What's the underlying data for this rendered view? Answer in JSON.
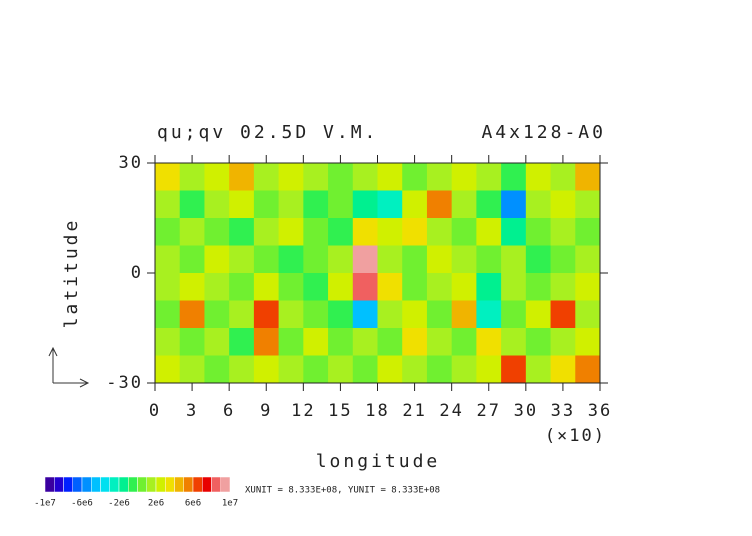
{
  "chart_data": {
    "type": "heatmap",
    "title": "qu;qv 02.5D V.M.",
    "subtitle": "A4x128-A0",
    "x_label": "longitude",
    "y_label": "latitude",
    "x_scale_note": "(×10)",
    "footer": "XUNIT = 8.333E+08, YUNIT = 8.333E+08",
    "xlim": [
      0,
      36
    ],
    "ylim": [
      -30,
      30
    ],
    "xticks": [
      0,
      3,
      6,
      9,
      12,
      15,
      18,
      21,
      24,
      27,
      30,
      33,
      36
    ],
    "yticks": [
      -30,
      0,
      30
    ],
    "xbins": [
      0,
      2,
      4,
      6,
      8,
      10,
      12,
      14,
      16,
      18,
      20,
      22,
      24,
      26,
      28,
      30,
      32,
      34,
      36
    ],
    "ybins": [
      30,
      22.5,
      15,
      7.5,
      0,
      -7.5,
      -15,
      -22.5,
      -30
    ],
    "z": [
      [
        3000000,
        1000000,
        2000000,
        4000000,
        1000000,
        2000000,
        1000000,
        0,
        1000000,
        2000000,
        0,
        1000000,
        2000000,
        1000000,
        -1000000,
        2000000,
        1000000,
        4000000
      ],
      [
        1000000,
        -1000000,
        1000000,
        2000000,
        0,
        1000000,
        -1000000,
        0,
        -2000000,
        -3000000,
        2000000,
        5000000,
        1000000,
        -1000000,
        -6000000,
        1000000,
        2000000,
        1000000
      ],
      [
        0,
        1000000,
        0,
        -1000000,
        1000000,
        2000000,
        0,
        -1000000,
        3000000,
        2000000,
        3000000,
        1000000,
        0,
        2000000,
        -2000000,
        0,
        1000000,
        0
      ],
      [
        1000000,
        0,
        2000000,
        1000000,
        0,
        -1000000,
        0,
        1000000,
        10000000,
        1000000,
        0,
        2000000,
        1000000,
        0,
        1000000,
        -1000000,
        0,
        1000000
      ],
      [
        1000000,
        2000000,
        1000000,
        0,
        2000000,
        0,
        -1000000,
        2000000,
        8000000,
        3000000,
        0,
        1000000,
        2000000,
        -2000000,
        1000000,
        0,
        1000000,
        2000000
      ],
      [
        0,
        5000000,
        0,
        1000000,
        6000000,
        1000000,
        0,
        -1000000,
        -5000000,
        1000000,
        2000000,
        0,
        4000000,
        -3000000,
        0,
        2000000,
        6000000,
        1000000
      ],
      [
        1000000,
        0,
        1000000,
        -1000000,
        5000000,
        0,
        2000000,
        0,
        1000000,
        0,
        3000000,
        1000000,
        0,
        3000000,
        1000000,
        0,
        1000000,
        2000000
      ],
      [
        2000000,
        1000000,
        0,
        1000000,
        2000000,
        1000000,
        0,
        1000000,
        0,
        2000000,
        1000000,
        0,
        1000000,
        2000000,
        6000000,
        1000000,
        3000000,
        5000000
      ]
    ],
    "colorbar": {
      "levels": [
        -10000000,
        -9000000,
        -8000000,
        -7000000,
        -6000000,
        -5000000,
        -4000000,
        -3000000,
        -2000000,
        -1000000,
        0,
        1000000,
        2000000,
        3000000,
        4000000,
        5000000,
        6000000,
        7000000,
        8000000,
        9000000,
        10000000
      ],
      "colors": [
        "#3a00a0",
        "#2200d0",
        "#0020ff",
        "#0060ff",
        "#0090ff",
        "#00c0ff",
        "#00e0f0",
        "#00f0c0",
        "#00f090",
        "#30f050",
        "#70f030",
        "#a8f020",
        "#d0f000",
        "#f0e000",
        "#f0b400",
        "#f08000",
        "#f04000",
        "#e80000",
        "#f06060",
        "#f0a0a0"
      ],
      "ticks": [
        {
          "value": -10000000,
          "label": "-1e7"
        },
        {
          "value": -6000000,
          "label": "-6e6"
        },
        {
          "value": -2000000,
          "label": "-2e6"
        },
        {
          "value": 2000000,
          "label": "2e6"
        },
        {
          "value": 6000000,
          "label": "6e6"
        },
        {
          "value": 10000000,
          "label": "1e7"
        }
      ]
    }
  }
}
